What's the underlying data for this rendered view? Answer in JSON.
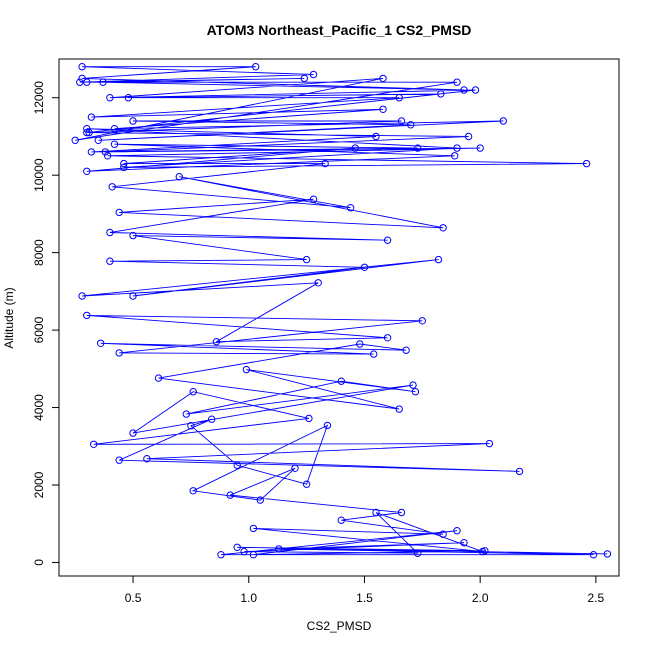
{
  "chart_data": {
    "type": "line",
    "title": "ATOM3 Northeast_Pacific_1 CS2_PMSD",
    "xlabel": "CS2_PMSD",
    "ylabel": "Altitude (m)",
    "xlim": [
      0.18,
      2.6
    ],
    "ylim": [
      -350,
      13000
    ],
    "xticks": [
      "0.5",
      "1.0",
      "1.5",
      "2.0",
      "2.5"
    ],
    "xtick_values": [
      0.5,
      1.0,
      1.5,
      2.0,
      2.5
    ],
    "yticks": [
      "0",
      "2000",
      "4000",
      "6000",
      "8000",
      "10000",
      "12000"
    ],
    "ytick_values": [
      0,
      2000,
      4000,
      6000,
      8000,
      10000,
      12000
    ],
    "grid": false,
    "marker": "open-circle",
    "series": [
      {
        "color": "#0000ff",
        "x": [
          2.55,
          0.95,
          2.02,
          1.02,
          1.9,
          0.88,
          2.49,
          1.13,
          1.93,
          0.98,
          1.73,
          1.55,
          2.01,
          1.02,
          1.84,
          1.4,
          1.66,
          0.92,
          1.2,
          1.05,
          0.76,
          1.34,
          1.25,
          0.95,
          0.75,
          0.84,
          0.44,
          2.17,
          0.56,
          2.04,
          0.33,
          1.26,
          0.76,
          0.5,
          1.71,
          0.73,
          1.4,
          1.72,
          0.99,
          1.65,
          0.61,
          1.48,
          1.68,
          0.36,
          1.54,
          0.44,
          1.75,
          0.3,
          1.6,
          0.86,
          1.3,
          0.28,
          1.82,
          0.5,
          1.5,
          0.4,
          1.25,
          0.5,
          1.6,
          0.4,
          1.28,
          0.44,
          1.84,
          0.7,
          1.44,
          0.41,
          1.33,
          0.46,
          1.46,
          0.3,
          1.89,
          0.42,
          1.73,
          0.32,
          1.55,
          0.3,
          1.9,
          0.46,
          2.46,
          0.39,
          2.0,
          0.38,
          1.95,
          0.31,
          1.66,
          0.5,
          1.7,
          0.35,
          2.1,
          0.42,
          1.58,
          0.32,
          1.65,
          0.48,
          1.83,
          0.3,
          1.98,
          0.4,
          1.58,
          0.25,
          1.9,
          0.3,
          1.24,
          0.37,
          1.93,
          0.28,
          1.03,
          0.28,
          1.28,
          0.27
        ],
        "y": [
          220,
          390,
          300,
          200,
          820,
          200,
          200,
          350,
          510,
          280,
          240,
          1290,
          280,
          880,
          730,
          1090,
          1290,
          1740,
          2430,
          1610,
          1850,
          3540,
          2020,
          2510,
          3530,
          3700,
          2640,
          2350,
          2680,
          3070,
          3050,
          3720,
          4410,
          3340,
          4580,
          3830,
          4680,
          4410,
          4980,
          3960,
          4760,
          5640,
          5480,
          5660,
          5380,
          5410,
          6240,
          6380,
          5800,
          5700,
          7220,
          6880,
          7820,
          6880,
          7620,
          7780,
          7820,
          8440,
          8320,
          8520,
          9380,
          9040,
          8640,
          9960,
          9160,
          9700,
          10300,
          10300,
          10700,
          10100,
          10500,
          10800,
          10700,
          10600,
          11000,
          11200,
          10700,
          10200,
          10300,
          10500,
          10700,
          10600,
          11000,
          11100,
          11400,
          11400,
          11300,
          10900,
          11400,
          11200,
          11700,
          11500,
          12000,
          12000,
          12100,
          11100,
          12200,
          12000,
          12500,
          10900,
          12400,
          12400,
          12500,
          12400,
          12200,
          12500,
          12800,
          12800,
          12600,
          12400
        ]
      }
    ]
  }
}
